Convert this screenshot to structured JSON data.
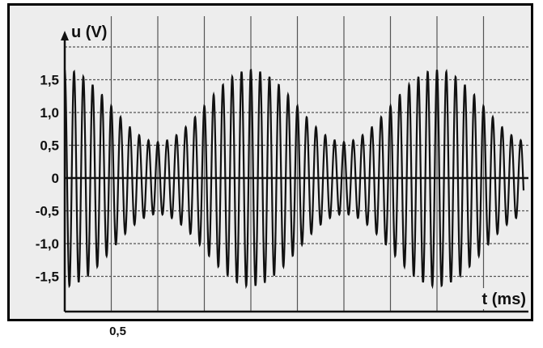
{
  "chart_data": {
    "type": "line",
    "ylabel": "u (V)",
    "xlabel": "t (ms)",
    "y_ticks": [
      "1,5",
      "1,0",
      "0,5",
      "0",
      "-0,5",
      "-1,0",
      "-1,5"
    ],
    "y_tick_values": [
      1.5,
      1.0,
      0.5,
      0,
      -0.5,
      -1.0,
      -1.5
    ],
    "x_ticks": [
      "0,5"
    ],
    "x_tick_values": [
      0.5
    ],
    "xlim": [
      0,
      5
    ],
    "ylim": [
      -1.9,
      2.1
    ],
    "grid": true,
    "grid_x_step": 0.5,
    "grid_y_step": 0.5,
    "series": [
      {
        "carrier_period_ms": 0.1,
        "envelope_period_ms": 2.0,
        "envelope_max": 1.65,
        "envelope_min": 0.55,
        "envelope_peak_t_ms": [
          0.0,
          2.0,
          4.0
        ],
        "values_t": [
          0,
          0.5,
          1,
          1.5,
          2,
          2.5,
          3,
          3.5,
          4,
          4.5,
          5
        ],
        "values_amplitude": [
          1.65,
          1.1,
          0.55,
          1.1,
          1.65,
          1.1,
          0.55,
          1.1,
          1.65,
          1.1,
          0.55
        ]
      }
    ],
    "colors": {
      "background": "#ededed",
      "line": "#111111",
      "grid": "#555555"
    }
  }
}
